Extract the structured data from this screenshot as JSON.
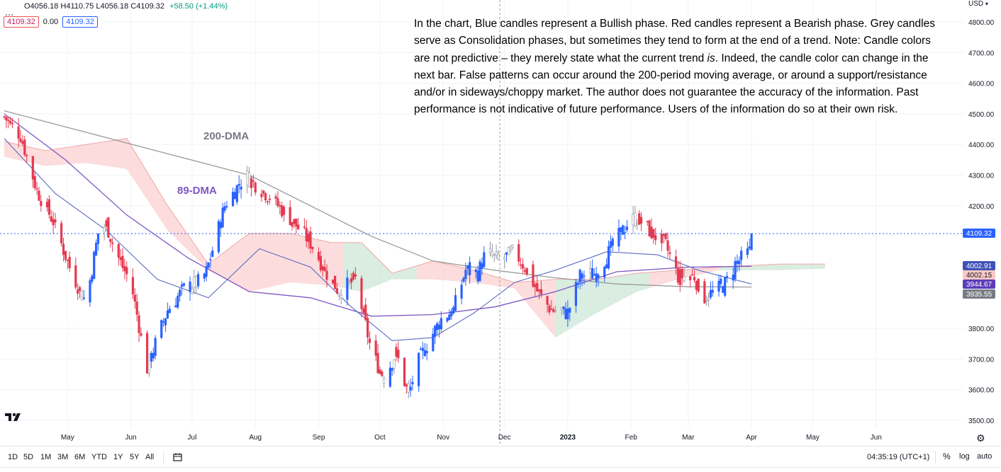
{
  "ohlc": {
    "open": "O4056.18",
    "high": "H4110.75",
    "low": "L4056.18",
    "close": "C4109.32",
    "change": "+58.50 (+1.44%)"
  },
  "legend_values": [
    "4109.32",
    "0.00",
    "4109.32"
  ],
  "currency": "USD",
  "disclaimer": {
    "before": "In the chart, Blue candles represent a Bullish phase. Red candles represent a Bearish phase. Grey candles serve as Consolidation phases, but sometimes they tend to form at the end of a trend. Note: Candle colors are not predictive – they merely state what the current trend ",
    "emph": "is",
    "after": ". Indeed, the candle color can change in the next bar. False patterns can occur around the 200-period moving average, or around a support/resistance and/or in sideways/choppy market. The author does not guarantee the accuracy of the information. Past performance is not indicative of future performance. Users of the information do so at their own risk."
  },
  "annotations": {
    "dma200": "200-DMA",
    "dma89": "89-DMA"
  },
  "price_labels": [
    {
      "value": "4109.32",
      "bg": "#2962ff",
      "fg": "#ffffff"
    },
    {
      "value": "4002.91",
      "bg": "#3f51b5",
      "fg": "#ffffff"
    },
    {
      "value": "4002.15",
      "bg": "#f8c9c4",
      "fg": "#131722"
    },
    {
      "value": "3944.67",
      "bg": "#5c3db8",
      "fg": "#ffffff"
    },
    {
      "value": "3935.55",
      "bg": "#787b86",
      "fg": "#ffffff"
    }
  ],
  "colors": {
    "bull": "#2962ff",
    "bear": "#e53950",
    "neutral": "#9598a1",
    "ma200": "#9a9a9a",
    "ma89": "#7e57c2",
    "ma_fast": "#5c6bc0",
    "cloud_red": "#fbd3d3",
    "cloud_green": "#cfe9d8",
    "grid": "#f0f3fa"
  },
  "bottom": {
    "ranges": [
      "1D",
      "5D",
      "1M",
      "3M",
      "6M",
      "YTD",
      "1Y",
      "5Y",
      "All"
    ],
    "clock": "04:35:19 (UTC+1)",
    "pct": "%",
    "log": "log",
    "auto": "auto"
  },
  "chart_data": {
    "type": "candlestick",
    "y_ticks": [
      4800,
      4700,
      4600,
      4500,
      4400,
      4300,
      4200,
      3800,
      3700,
      3600,
      3500
    ],
    "y_tick_labels": [
      "4800.00",
      "4700.00",
      "4600.00",
      "4500.00",
      "4400.00",
      "4300.00",
      "4200.00",
      "3800.00",
      "3700.00",
      "3600.00",
      "3500.00"
    ],
    "ylim": [
      3480,
      4840
    ],
    "x_labels": [
      "May",
      "Jun",
      "Jul",
      "Aug",
      "Sep",
      "Oct",
      "Nov",
      "Dec",
      "2023",
      "Feb",
      "Mar",
      "Apr",
      "May",
      "Jun"
    ],
    "x_label_days": [
      31,
      62,
      92,
      123,
      154,
      184,
      215,
      245,
      276,
      307,
      335,
      366,
      396,
      427
    ],
    "last_price": 4109.32,
    "anchors_close": [
      [
        0,
        4490
      ],
      [
        8,
        4430
      ],
      [
        16,
        4250
      ],
      [
        24,
        4150
      ],
      [
        32,
        4000
      ],
      [
        40,
        3880
      ],
      [
        46,
        4110
      ],
      [
        50,
        4140
      ],
      [
        54,
        4060
      ],
      [
        58,
        4000
      ],
      [
        62,
        3950
      ],
      [
        70,
        3670
      ],
      [
        74,
        3750
      ],
      [
        80,
        3860
      ],
      [
        88,
        3930
      ],
      [
        98,
        3960
      ],
      [
        108,
        4200
      ],
      [
        118,
        4300
      ],
      [
        130,
        4230
      ],
      [
        140,
        4160
      ],
      [
        150,
        4080
      ],
      [
        158,
        3980
      ],
      [
        164,
        3920
      ],
      [
        172,
        3960
      ],
      [
        180,
        3720
      ],
      [
        186,
        3640
      ],
      [
        192,
        3720
      ],
      [
        198,
        3580
      ],
      [
        202,
        3680
      ],
      [
        208,
        3760
      ],
      [
        214,
        3830
      ],
      [
        220,
        3860
      ],
      [
        226,
        3990
      ],
      [
        232,
        3980
      ],
      [
        236,
        4050
      ],
      [
        242,
        4020
      ],
      [
        250,
        4050
      ],
      [
        256,
        3990
      ],
      [
        262,
        3910
      ],
      [
        268,
        3860
      ],
      [
        276,
        3850
      ],
      [
        282,
        3970
      ],
      [
        290,
        3980
      ],
      [
        300,
        4090
      ],
      [
        306,
        4150
      ],
      [
        310,
        4160
      ],
      [
        316,
        4120
      ],
      [
        324,
        4070
      ],
      [
        330,
        3970
      ],
      [
        338,
        3970
      ],
      [
        342,
        3900
      ],
      [
        348,
        3920
      ],
      [
        354,
        3950
      ],
      [
        358,
        4010
      ],
      [
        365,
        4050
      ],
      [
        366,
        4109
      ]
    ],
    "ma200": [
      [
        0,
        4510
      ],
      [
        40,
        4440
      ],
      [
        80,
        4370
      ],
      [
        120,
        4300
      ],
      [
        150,
        4200
      ],
      [
        180,
        4100
      ],
      [
        210,
        4020
      ],
      [
        240,
        3990
      ],
      [
        270,
        3965
      ],
      [
        300,
        3945
      ],
      [
        335,
        3936
      ],
      [
        366,
        3935
      ]
    ],
    "ma89": [
      [
        0,
        4500
      ],
      [
        30,
        4350
      ],
      [
        60,
        4170
      ],
      [
        90,
        4030
      ],
      [
        120,
        3920
      ],
      [
        150,
        3900
      ],
      [
        180,
        3840
      ],
      [
        210,
        3845
      ],
      [
        240,
        3870
      ],
      [
        270,
        3920
      ],
      [
        300,
        3985
      ],
      [
        335,
        4000
      ],
      [
        366,
        4003
      ]
    ],
    "ma_fast": [
      [
        0,
        4420
      ],
      [
        25,
        4240
      ],
      [
        50,
        4120
      ],
      [
        75,
        3960
      ],
      [
        100,
        3900
      ],
      [
        125,
        4060
      ],
      [
        150,
        4000
      ],
      [
        170,
        3870
      ],
      [
        190,
        3760
      ],
      [
        210,
        3770
      ],
      [
        230,
        3850
      ],
      [
        250,
        3950
      ],
      [
        270,
        3990
      ],
      [
        295,
        4050
      ],
      [
        320,
        4040
      ],
      [
        340,
        3990
      ],
      [
        366,
        3945
      ]
    ],
    "cloud_top": [
      [
        0,
        4410
      ],
      [
        20,
        4380
      ],
      [
        40,
        4400
      ],
      [
        60,
        4420
      ],
      [
        80,
        4200
      ],
      [
        100,
        4010
      ],
      [
        120,
        4110
      ],
      [
        140,
        4110
      ],
      [
        160,
        4080
      ],
      [
        175,
        4080
      ],
      [
        190,
        3980
      ],
      [
        210,
        4020
      ],
      [
        230,
        3990
      ],
      [
        250,
        3950
      ],
      [
        270,
        3960
      ],
      [
        290,
        3960
      ],
      [
        310,
        3980
      ],
      [
        330,
        3990
      ],
      [
        350,
        4000
      ],
      [
        380,
        4010
      ],
      [
        402,
        4010
      ]
    ],
    "cloud_bottom": [
      [
        0,
        4360
      ],
      [
        20,
        4330
      ],
      [
        40,
        4340
      ],
      [
        60,
        4320
      ],
      [
        80,
        4120
      ],
      [
        100,
        3990
      ],
      [
        120,
        3920
      ],
      [
        140,
        3950
      ],
      [
        160,
        3940
      ],
      [
        175,
        3920
      ],
      [
        190,
        3960
      ],
      [
        210,
        3960
      ],
      [
        230,
        3950
      ],
      [
        250,
        3930
      ],
      [
        270,
        3770
      ],
      [
        290,
        3850
      ],
      [
        310,
        3920
      ],
      [
        330,
        3960
      ],
      [
        350,
        3990
      ],
      [
        380,
        3990
      ],
      [
        402,
        3995
      ]
    ]
  }
}
